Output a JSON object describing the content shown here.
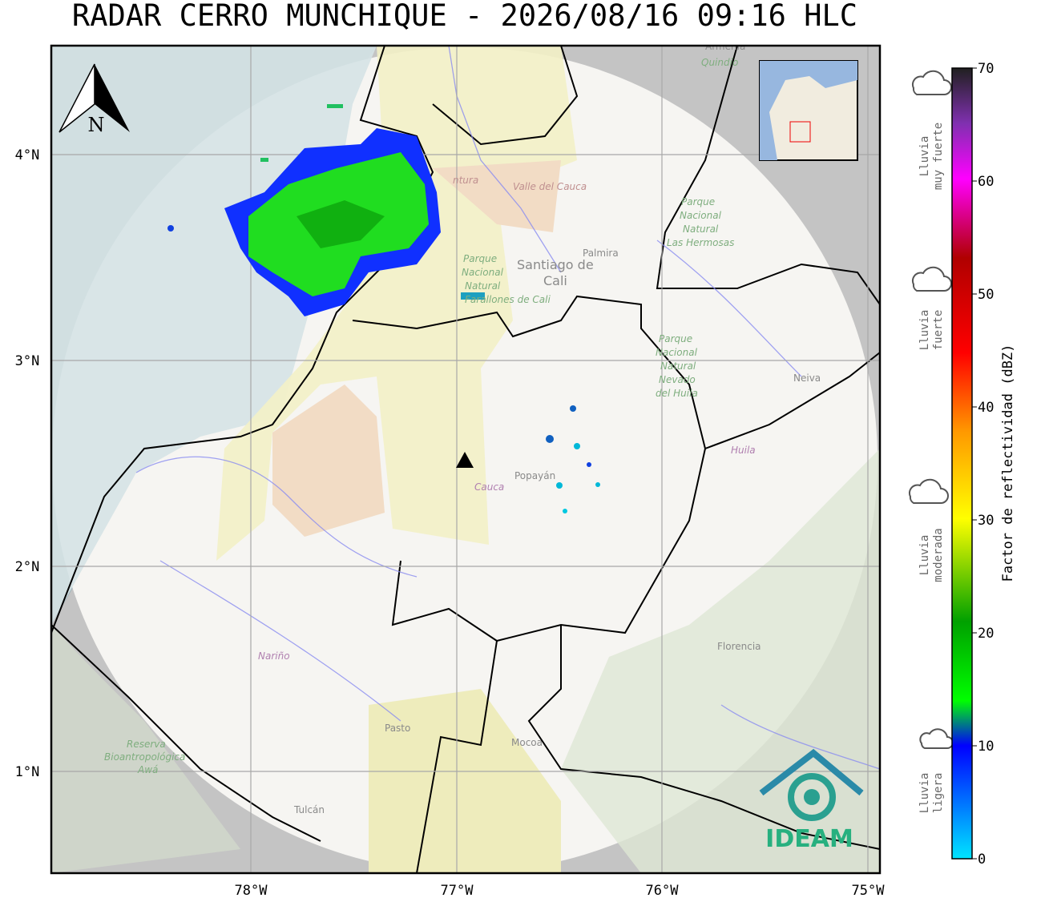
{
  "title": "RADAR CERRO MUNCHIQUE - 2026/08/16 09:16 HLC",
  "north": "N",
  "lat_labels": [
    "4°N",
    "3°N",
    "2°N",
    "1°N"
  ],
  "lon_labels": [
    "78°W",
    "77°W",
    "76°W",
    "75°W"
  ],
  "places": [
    "Armenia",
    "Quindío",
    "Valle del Cauca",
    "ntura",
    "Palmira",
    "Santiago de",
    "Cali",
    "Parque",
    "Nacional",
    "Natural",
    "Las Hermosas",
    "Parque",
    "Nacional",
    "Natural",
    "Farallones de Cali",
    "Parque",
    "Nacional",
    "Natural",
    "Nevado",
    "del Huila",
    "Neiva",
    "Huila",
    "Popayán",
    "Cauca",
    "Florencia",
    "Nariño",
    "Pasto",
    "Mocoa",
    "Reserva",
    "Bioantropológica",
    "Awá",
    "Tulcán"
  ],
  "legend": [
    [
      "Lluvia",
      "muy fuerte"
    ],
    [
      "Lluvia",
      "fuerte"
    ],
    [
      "Lluvia",
      "moderada"
    ],
    [
      "Lluvia",
      "ligera"
    ]
  ],
  "colorbar": {
    "label": "Factor de reflectividad (dBZ)",
    "range": [
      0,
      70
    ],
    "ticks": [
      0,
      10,
      20,
      30,
      40,
      50,
      60,
      70
    ]
  },
  "logo": "IDEAM"
}
